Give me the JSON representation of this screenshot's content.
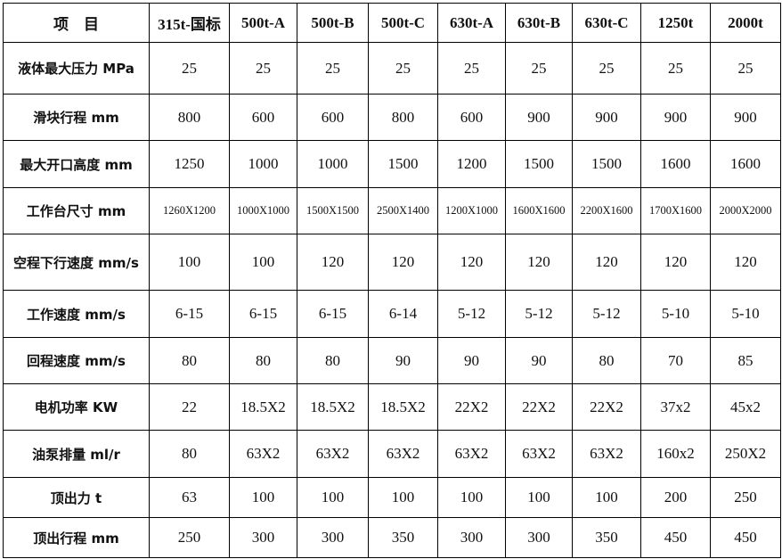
{
  "table": {
    "headers": [
      "项　目",
      "315t-国标",
      "500t-A",
      "500t-B",
      "500t-C",
      "630t-A",
      "630t-B",
      "630t-C",
      "1250t",
      "2000t"
    ],
    "rows": [
      {
        "label": "液体最大压力 MPa",
        "values": [
          "25",
          "25",
          "25",
          "25",
          "25",
          "25",
          "25",
          "25",
          "25"
        ]
      },
      {
        "label": "滑块行程 mm",
        "values": [
          "800",
          "600",
          "600",
          "800",
          "600",
          "900",
          "900",
          "900",
          "900"
        ]
      },
      {
        "label": "最大开口高度 mm",
        "values": [
          "1250",
          "1000",
          "1000",
          "1500",
          "1200",
          "1500",
          "1500",
          "1600",
          "1600"
        ]
      },
      {
        "label": "工作台尺寸 mm",
        "values": [
          "1260X1200",
          "1000X1000",
          "1500X1500",
          "2500X1400",
          "1200X1000",
          "1600X1600",
          "2200X1600",
          "1700X1600",
          "2000X2000"
        ]
      },
      {
        "label": "空程下行速度 mm/s",
        "values": [
          "100",
          "100",
          "120",
          "120",
          "120",
          "120",
          "120",
          "120",
          "120"
        ]
      },
      {
        "label": "工作速度 mm/s",
        "values": [
          "6-15",
          "6-15",
          "6-15",
          "6-14",
          "5-12",
          "5-12",
          "5-12",
          "5-10",
          "5-10"
        ]
      },
      {
        "label": "回程速度 mm/s",
        "values": [
          "80",
          "80",
          "80",
          "90",
          "90",
          "90",
          "80",
          "70",
          "85"
        ]
      },
      {
        "label": "电机功率 KW",
        "values": [
          "22",
          "18.5X2",
          "18.5X2",
          "18.5X2",
          "22X2",
          "22X2",
          "22X2",
          "37x2",
          "45x2"
        ]
      },
      {
        "label": "油泵排量 ml/r",
        "values": [
          "80",
          "63X2",
          "63X2",
          "63X2",
          "63X2",
          "63X2",
          "63X2",
          "160x2",
          "250X2"
        ]
      },
      {
        "label": "顶出力 t",
        "values": [
          "63",
          "100",
          "100",
          "100",
          "100",
          "100",
          "100",
          "200",
          "250"
        ]
      },
      {
        "label": "顶出行程 mm",
        "values": [
          "250",
          "300",
          "300",
          "350",
          "300",
          "300",
          "350",
          "450",
          "450"
        ]
      }
    ]
  }
}
